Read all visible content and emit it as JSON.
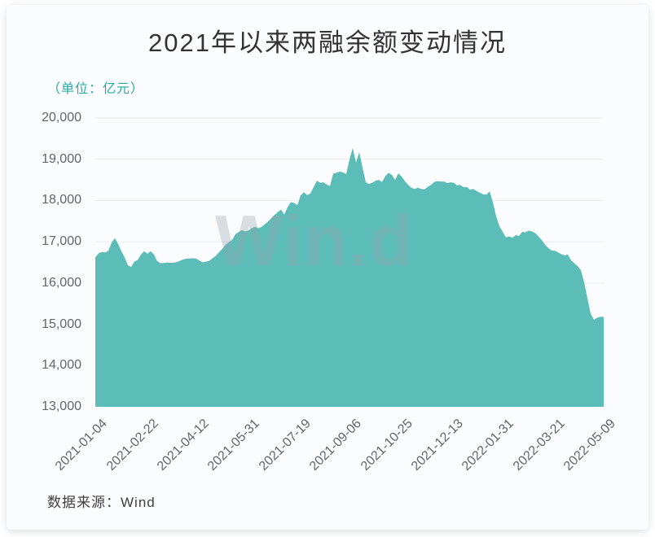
{
  "card": {
    "title": "2021年以来两融余额变动情况",
    "unit_label": "（单位：亿元）",
    "watermark": "Win.d",
    "source": "数据来源：Wind"
  },
  "colors": {
    "area_fill": "#5bbcb8",
    "accent_teal": "#2aa9a2",
    "title_text": "#333333",
    "axis_text": "#60666a",
    "gridline": "#e9ebed",
    "card_background": "#fbfcfd",
    "watermark_text": "rgba(152,163,172,0.35)"
  },
  "chart_data": {
    "type": "area",
    "title": "2021年以来两融余额变动情况",
    "unit": "亿元",
    "series_name": "两融余额",
    "legend": "none",
    "grid": "horizontal",
    "ylim": [
      13000,
      20000
    ],
    "y_ticks": [
      13000,
      14000,
      15000,
      16000,
      17000,
      18000,
      19000,
      20000
    ],
    "y_tick_labels": [
      "13,000",
      "14,000",
      "15,000",
      "16,000",
      "17,000",
      "18,000",
      "19,000",
      "20,000"
    ],
    "x_tick_labels": [
      "2021-01-04",
      "2021-02-22",
      "2021-04-12",
      "2021-05-31",
      "2021-07-19",
      "2021-09-06",
      "2021-10-25",
      "2021-12-13",
      "2022-01-31",
      "2022-03-21",
      "2022-05-09"
    ],
    "values": [
      16620,
      16720,
      16750,
      16740,
      16780,
      16980,
      17090,
      16950,
      16770,
      16620,
      16430,
      16390,
      16520,
      16560,
      16690,
      16770,
      16710,
      16770,
      16690,
      16530,
      16480,
      16485,
      16495,
      16490,
      16490,
      16510,
      16540,
      16570,
      16590,
      16595,
      16600,
      16590,
      16540,
      16500,
      16520,
      16540,
      16600,
      16660,
      16750,
      16830,
      16930,
      16990,
      17050,
      17180,
      17240,
      17280,
      17250,
      17270,
      17330,
      17360,
      17330,
      17360,
      17420,
      17490,
      17570,
      17650,
      17720,
      17780,
      17660,
      17840,
      17960,
      17940,
      17890,
      18120,
      18200,
      18130,
      18170,
      18330,
      18480,
      18430,
      18440,
      18390,
      18350,
      18650,
      18675,
      18700,
      18680,
      18640,
      19000,
      19270,
      18920,
      19170,
      18800,
      18440,
      18400,
      18430,
      18480,
      18500,
      18450,
      18590,
      18670,
      18620,
      18500,
      18660,
      18580,
      18470,
      18380,
      18310,
      18280,
      18310,
      18280,
      18270,
      18330,
      18380,
      18450,
      18470,
      18460,
      18460,
      18420,
      18440,
      18430,
      18370,
      18380,
      18320,
      18330,
      18260,
      18280,
      18230,
      18190,
      18150,
      18140,
      18220,
      17960,
      17620,
      17380,
      17240,
      17110,
      17130,
      17100,
      17160,
      17140,
      17240,
      17230,
      17270,
      17250,
      17210,
      17130,
      17040,
      16930,
      16850,
      16790,
      16780,
      16740,
      16700,
      16670,
      16690,
      16550,
      16480,
      16410,
      16310,
      16020,
      15640,
      15260,
      15110,
      15160,
      15180,
      15180
    ]
  }
}
